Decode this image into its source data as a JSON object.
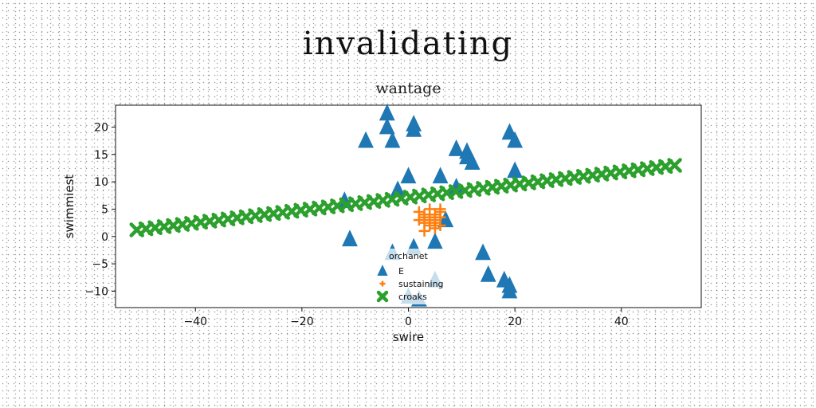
{
  "page_title": "invalidating",
  "chart_data": {
    "type": "scatter",
    "title": "wantage",
    "xlabel": "swire",
    "ylabel": "swimmiest",
    "xlim": [
      -55,
      55
    ],
    "ylim": [
      -13,
      24
    ],
    "xticks": [
      -40,
      -20,
      0,
      20,
      40
    ],
    "yticks": [
      -10,
      -5,
      0,
      5,
      10,
      15,
      20
    ],
    "tick_labels": {
      "x": [
        "−40",
        "−20",
        "0",
        "20",
        "40"
      ],
      "y": [
        "−10",
        "−5",
        "0",
        "5",
        "10",
        "15",
        "20"
      ]
    },
    "grid": false,
    "legend": {
      "title": "orchanet",
      "placement": "lower-center",
      "entries": [
        {
          "label": "E",
          "series": 0
        },
        {
          "label": "sustaining",
          "series": 1
        },
        {
          "label": "croaks",
          "series": 2
        }
      ]
    },
    "series": [
      {
        "name": "E",
        "marker": "triangle",
        "color": "#1f77b4",
        "points": [
          [
            -4,
            22.5
          ],
          [
            -4,
            20
          ],
          [
            -8,
            17.5
          ],
          [
            -3,
            17.5
          ],
          [
            1,
            20.5
          ],
          [
            1,
            19.5
          ],
          [
            19,
            19
          ],
          [
            20,
            17.5
          ],
          [
            9,
            16
          ],
          [
            11,
            15.5
          ],
          [
            11,
            14.5
          ],
          [
            12,
            13.5
          ],
          [
            20,
            12
          ],
          [
            0,
            11
          ],
          [
            6,
            11
          ],
          [
            -2,
            8.5
          ],
          [
            9,
            9
          ],
          [
            -12,
            6.5
          ],
          [
            7,
            3
          ],
          [
            -11,
            -0.5
          ],
          [
            5,
            -1
          ],
          [
            -3,
            -3
          ],
          [
            1,
            -2
          ],
          [
            14,
            -3
          ],
          [
            15,
            -7
          ],
          [
            18,
            -8
          ],
          [
            19,
            -9
          ],
          [
            19,
            -10
          ],
          [
            0,
            -11
          ],
          [
            2,
            -11.5
          ],
          [
            5,
            -8
          ]
        ]
      },
      {
        "name": "sustaining",
        "marker": "plus",
        "color": "#ff7f0e",
        "points": [
          [
            2,
            3
          ],
          [
            3,
            4
          ],
          [
            4,
            3.5
          ],
          [
            5,
            4
          ],
          [
            6,
            3.5
          ],
          [
            3,
            2.5
          ],
          [
            4,
            2
          ],
          [
            5,
            3
          ],
          [
            6,
            4.5
          ],
          [
            2,
            4.5
          ],
          [
            4,
            5
          ],
          [
            5,
            1.5
          ],
          [
            3,
            1
          ],
          [
            6,
            2
          ],
          [
            4,
            3
          ],
          [
            5,
            2.5
          ],
          [
            3,
            3.5
          ],
          [
            6,
            5
          ]
        ]
      },
      {
        "name": "croaks",
        "marker": "x",
        "color": "#2ca02c",
        "line": {
          "x_start": -51,
          "x_end": 50,
          "y_start": 1.2,
          "y_end": 13,
          "count": 60
        }
      }
    ]
  }
}
